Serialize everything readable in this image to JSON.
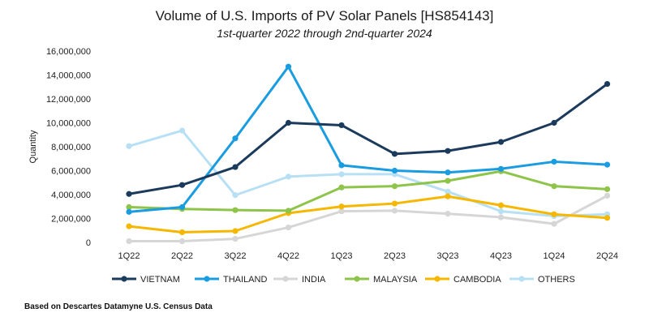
{
  "chart_data": {
    "type": "line",
    "title": "Volume of U.S. Imports of PV Solar Panels [HS854143]",
    "subtitle": "1st-quarter 2022 through 2nd-quarter 2024",
    "xlabel": "",
    "ylabel": "Quantity",
    "ylim": [
      0,
      16000000
    ],
    "yticks": [
      0,
      2000000,
      4000000,
      6000000,
      8000000,
      10000000,
      12000000,
      14000000,
      16000000
    ],
    "ytick_labels": [
      "0",
      "2,000,000",
      "4,000,000",
      "6,000,000",
      "8,000,000",
      "10,000,000",
      "12,000,000",
      "14,000,000",
      "16,000,000"
    ],
    "categories": [
      "1Q22",
      "2Q22",
      "3Q22",
      "4Q22",
      "1Q23",
      "2Q23",
      "3Q23",
      "4Q23",
      "1Q24",
      "2Q24"
    ],
    "grid": false,
    "legend_position": "bottom",
    "series": [
      {
        "name": "VIETNAM",
        "color": "#1b3a5c",
        "values": [
          4050000,
          4800000,
          6300000,
          10000000,
          9800000,
          7400000,
          7650000,
          8400000,
          10000000,
          13250000
        ]
      },
      {
        "name": "THAILAND",
        "color": "#1a9ce0",
        "values": [
          2550000,
          2950000,
          8700000,
          14700000,
          6450000,
          6000000,
          5850000,
          6150000,
          6750000,
          6500000
        ]
      },
      {
        "name": "INDIA",
        "color": "#d6d6d6",
        "values": [
          100000,
          100000,
          300000,
          1250000,
          2600000,
          2650000,
          2400000,
          2100000,
          1550000,
          3900000
        ]
      },
      {
        "name": "MALAYSIA",
        "color": "#8dc449",
        "values": [
          2950000,
          2800000,
          2700000,
          2650000,
          4600000,
          4700000,
          5150000,
          5950000,
          4700000,
          4450000
        ]
      },
      {
        "name": "CAMBODIA",
        "color": "#f5b700",
        "values": [
          1350000,
          850000,
          950000,
          2450000,
          3000000,
          3250000,
          3850000,
          3100000,
          2350000,
          2050000
        ]
      },
      {
        "name": "OTHERS",
        "color": "#b8e0f5",
        "values": [
          8050000,
          9350000,
          3950000,
          5500000,
          5700000,
          5700000,
          4250000,
          2600000,
          2200000,
          2350000
        ]
      }
    ]
  },
  "source_note": "Based on Descartes Datamyne U.S. Census Data"
}
